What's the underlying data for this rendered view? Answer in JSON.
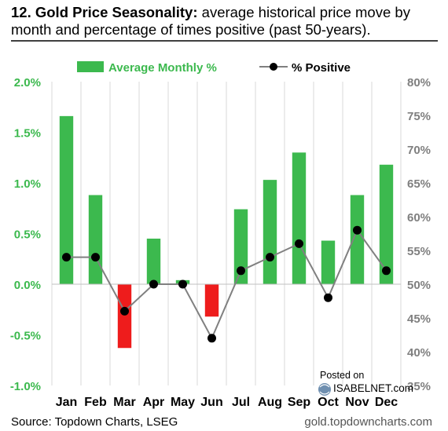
{
  "header": {
    "title_bold": "12. Gold Price Seasonality:",
    "title_rest": " average historical price move by",
    "title_line2": "month and percentage of times positive (past 50-years)."
  },
  "footer": {
    "source": "Source: Topdown Charts, LSEG",
    "site": "gold.topdowncharts.com"
  },
  "watermark": {
    "posted_on": "Posted on",
    "brand": "ISABELNET.com"
  },
  "colors": {
    "positive_bar": "#3cb94e",
    "negative_bar": "#ee1c1c",
    "line": "#808080",
    "marker": "#000000",
    "left_axis_text": "#3cb94e",
    "right_axis_text": "#7f7f7f"
  },
  "chart_data": {
    "type": "bar",
    "categories": [
      "Jan",
      "Feb",
      "Mar",
      "Apr",
      "May",
      "Jun",
      "Jul",
      "Aug",
      "Sep",
      "Oct",
      "Nov",
      "Dec"
    ],
    "series": [
      {
        "name": "Average Monthly %",
        "type": "bar",
        "axis": "left",
        "values": [
          1.66,
          0.88,
          -0.63,
          0.45,
          0.04,
          -0.32,
          0.74,
          1.03,
          1.3,
          0.43,
          0.88,
          1.18
        ]
      },
      {
        "name": "% Positive",
        "type": "line",
        "axis": "right",
        "values": [
          54,
          54,
          46,
          50,
          50,
          42,
          52,
          54,
          56,
          48,
          58,
          52
        ]
      }
    ],
    "y_left": {
      "ylim": [
        -1.0,
        2.0
      ],
      "ticks": [
        2.0,
        1.5,
        1.0,
        0.5,
        0.0,
        -0.5,
        -1.0
      ],
      "tick_labels": [
        "2.0%",
        "1.5%",
        "1.0%",
        "0.5%",
        "0.0%",
        "-0.5%",
        "-1.0%"
      ]
    },
    "y_right": {
      "ylim": [
        35,
        80
      ],
      "ticks": [
        80,
        75,
        70,
        65,
        60,
        55,
        50,
        45,
        40,
        35
      ],
      "tick_labels": [
        "80%",
        "75%",
        "70%",
        "65%",
        "60%",
        "55%",
        "50%",
        "45%",
        "40%",
        "35%"
      ]
    },
    "grid": "vertical",
    "legend_position": "top"
  }
}
